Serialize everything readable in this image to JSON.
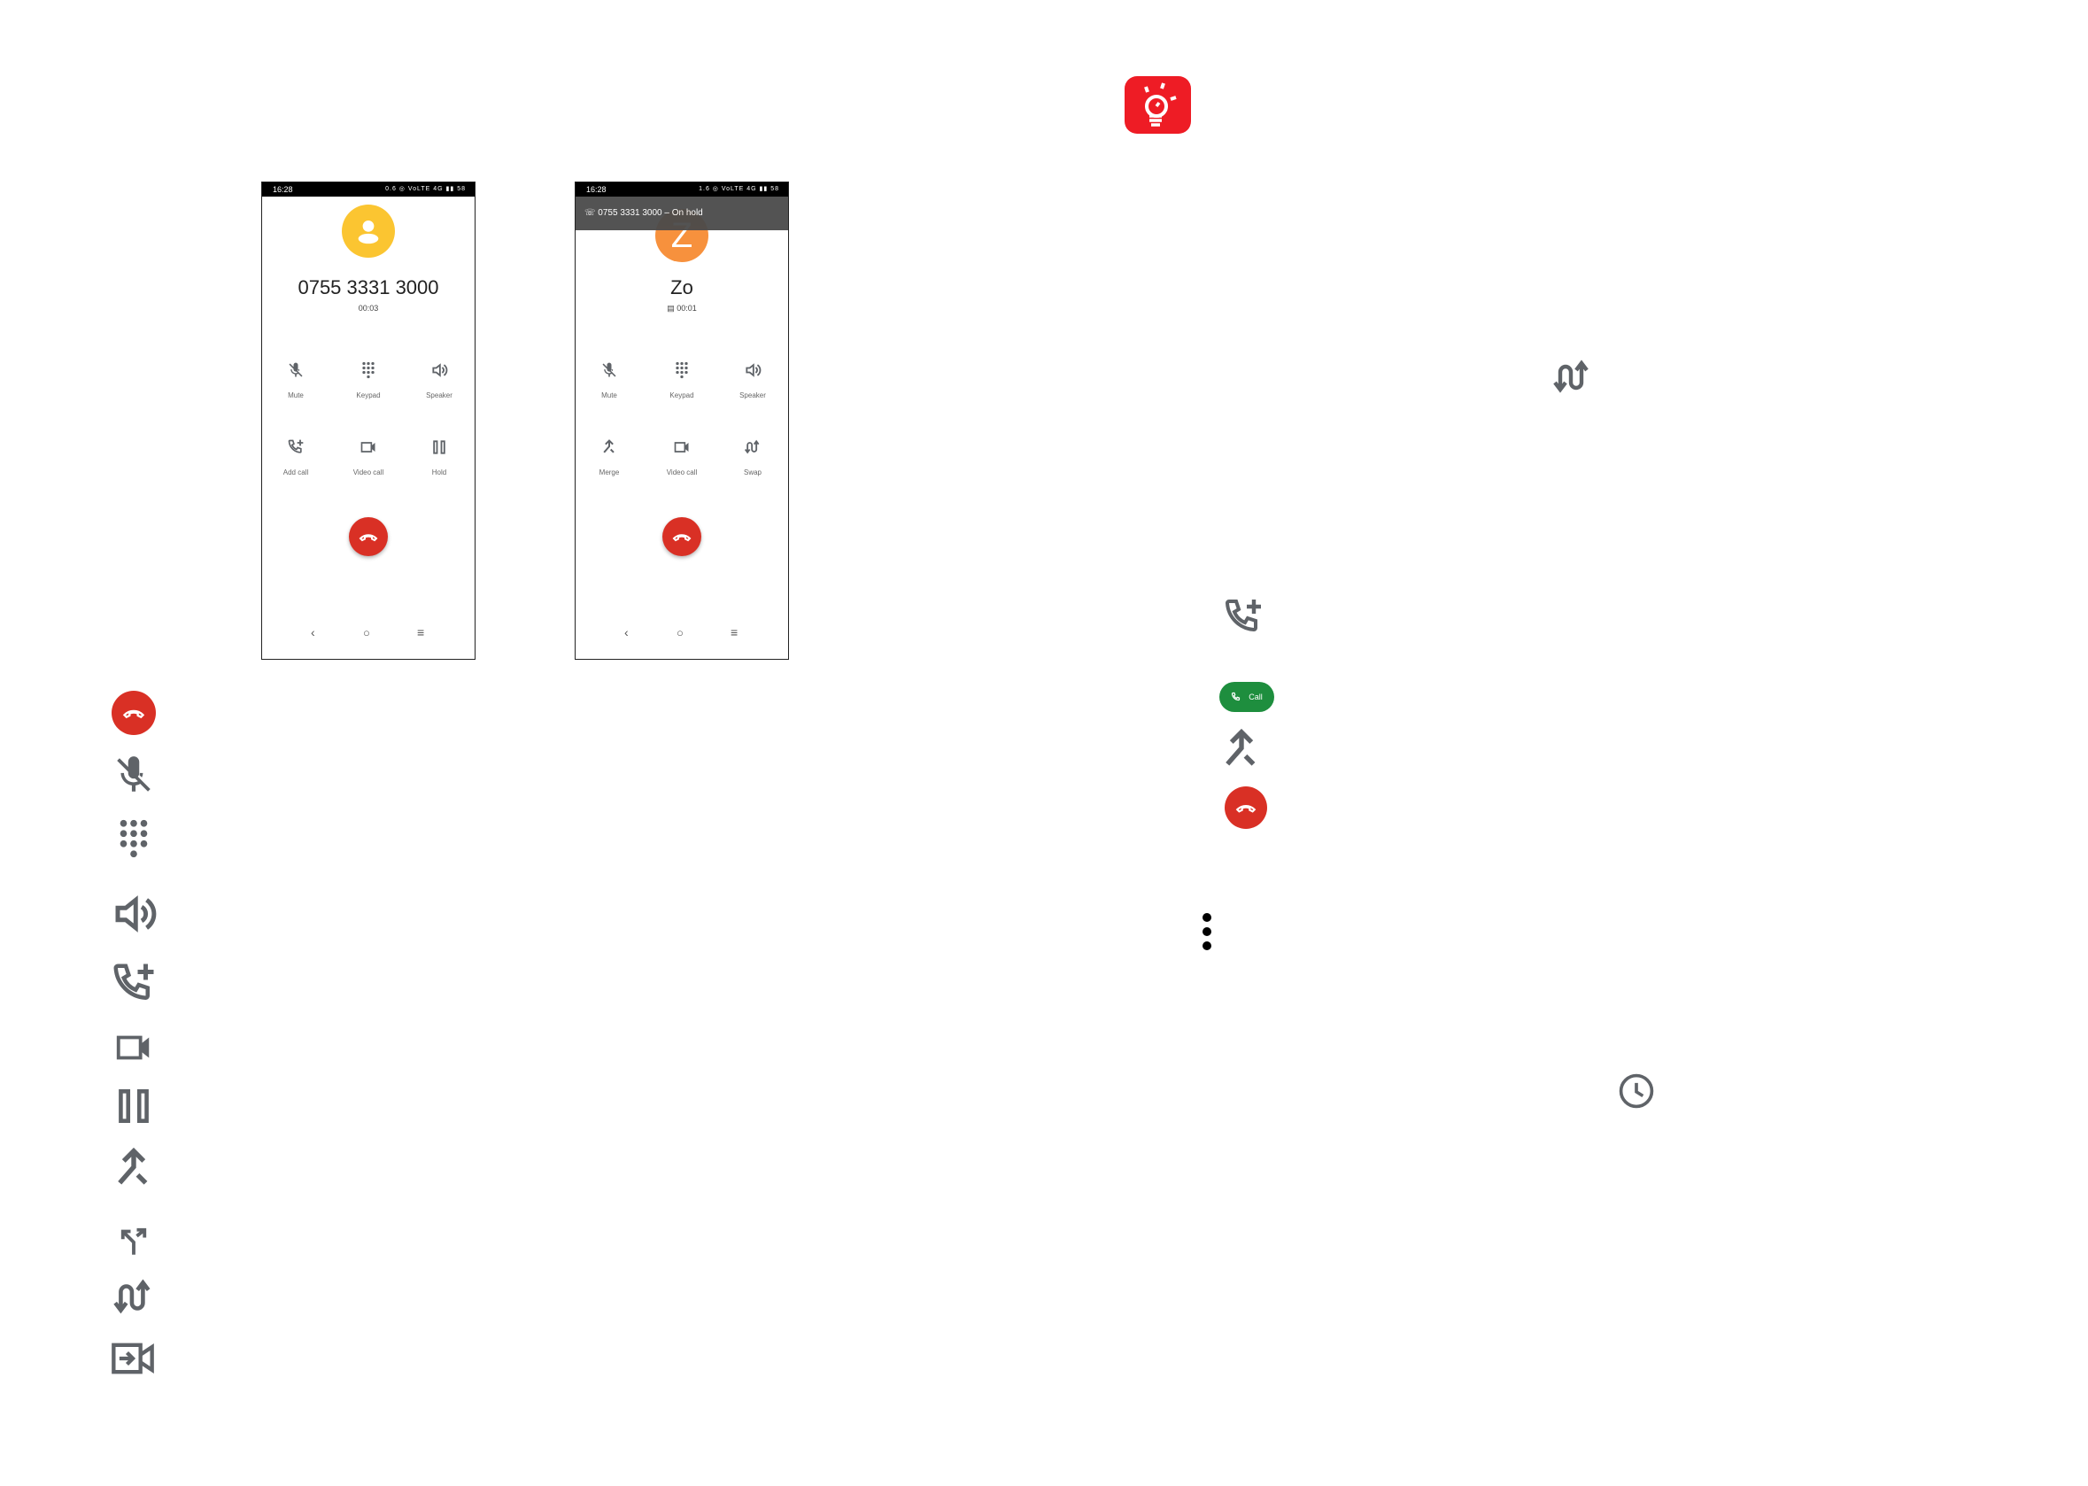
{
  "colors": {
    "icon_gray": "#5f6368",
    "end_red": "#d93025",
    "call_green": "#1e8e3e",
    "logo_red": "#ee1c25",
    "avatar_yellow": "#fbc531",
    "avatar_orange": "#f7913d"
  },
  "phone1": {
    "status_time": "16:28",
    "status_icons": "0.6 ◎ VoLTE 4G ▮▮ 58",
    "avatar_icon": "person-icon",
    "caller": "0755 3331 3000",
    "timer": "00:03",
    "buttons": [
      {
        "label": "Mute",
        "icon": "mic-off-icon"
      },
      {
        "label": "Keypad",
        "icon": "dialpad-icon"
      },
      {
        "label": "Speaker",
        "icon": "speaker-icon"
      },
      {
        "label": "Add call",
        "icon": "add-call-icon"
      },
      {
        "label": "Video call",
        "icon": "videocam-icon"
      },
      {
        "label": "Hold",
        "icon": "pause-icon"
      }
    ]
  },
  "phone2": {
    "status_time": "16:28",
    "status_icons": "1.6 ◎ VoLTE 4G ▮▮ 58",
    "hold_banner": "0755 3331 3000 – On hold",
    "avatar_letter": "Z",
    "caller": "Zo",
    "timer": "00:01",
    "buttons": [
      {
        "label": "Mute",
        "icon": "mic-off-icon"
      },
      {
        "label": "Keypad",
        "icon": "dialpad-icon"
      },
      {
        "label": "Speaker",
        "icon": "speaker-icon"
      },
      {
        "label": "Merge",
        "icon": "merge-icon"
      },
      {
        "label": "Video call",
        "icon": "videocam-icon"
      },
      {
        "label": "Swap",
        "icon": "swap-icon"
      }
    ]
  },
  "call_pill_label": "Call",
  "legend_icons": [
    "end-call-icon",
    "mic-off-icon",
    "dialpad-icon",
    "speaker-icon",
    "add-call-icon",
    "videocam-icon",
    "pause-icon",
    "merge-icon",
    "split-icon",
    "swap-icon",
    "video-transfer-icon"
  ]
}
